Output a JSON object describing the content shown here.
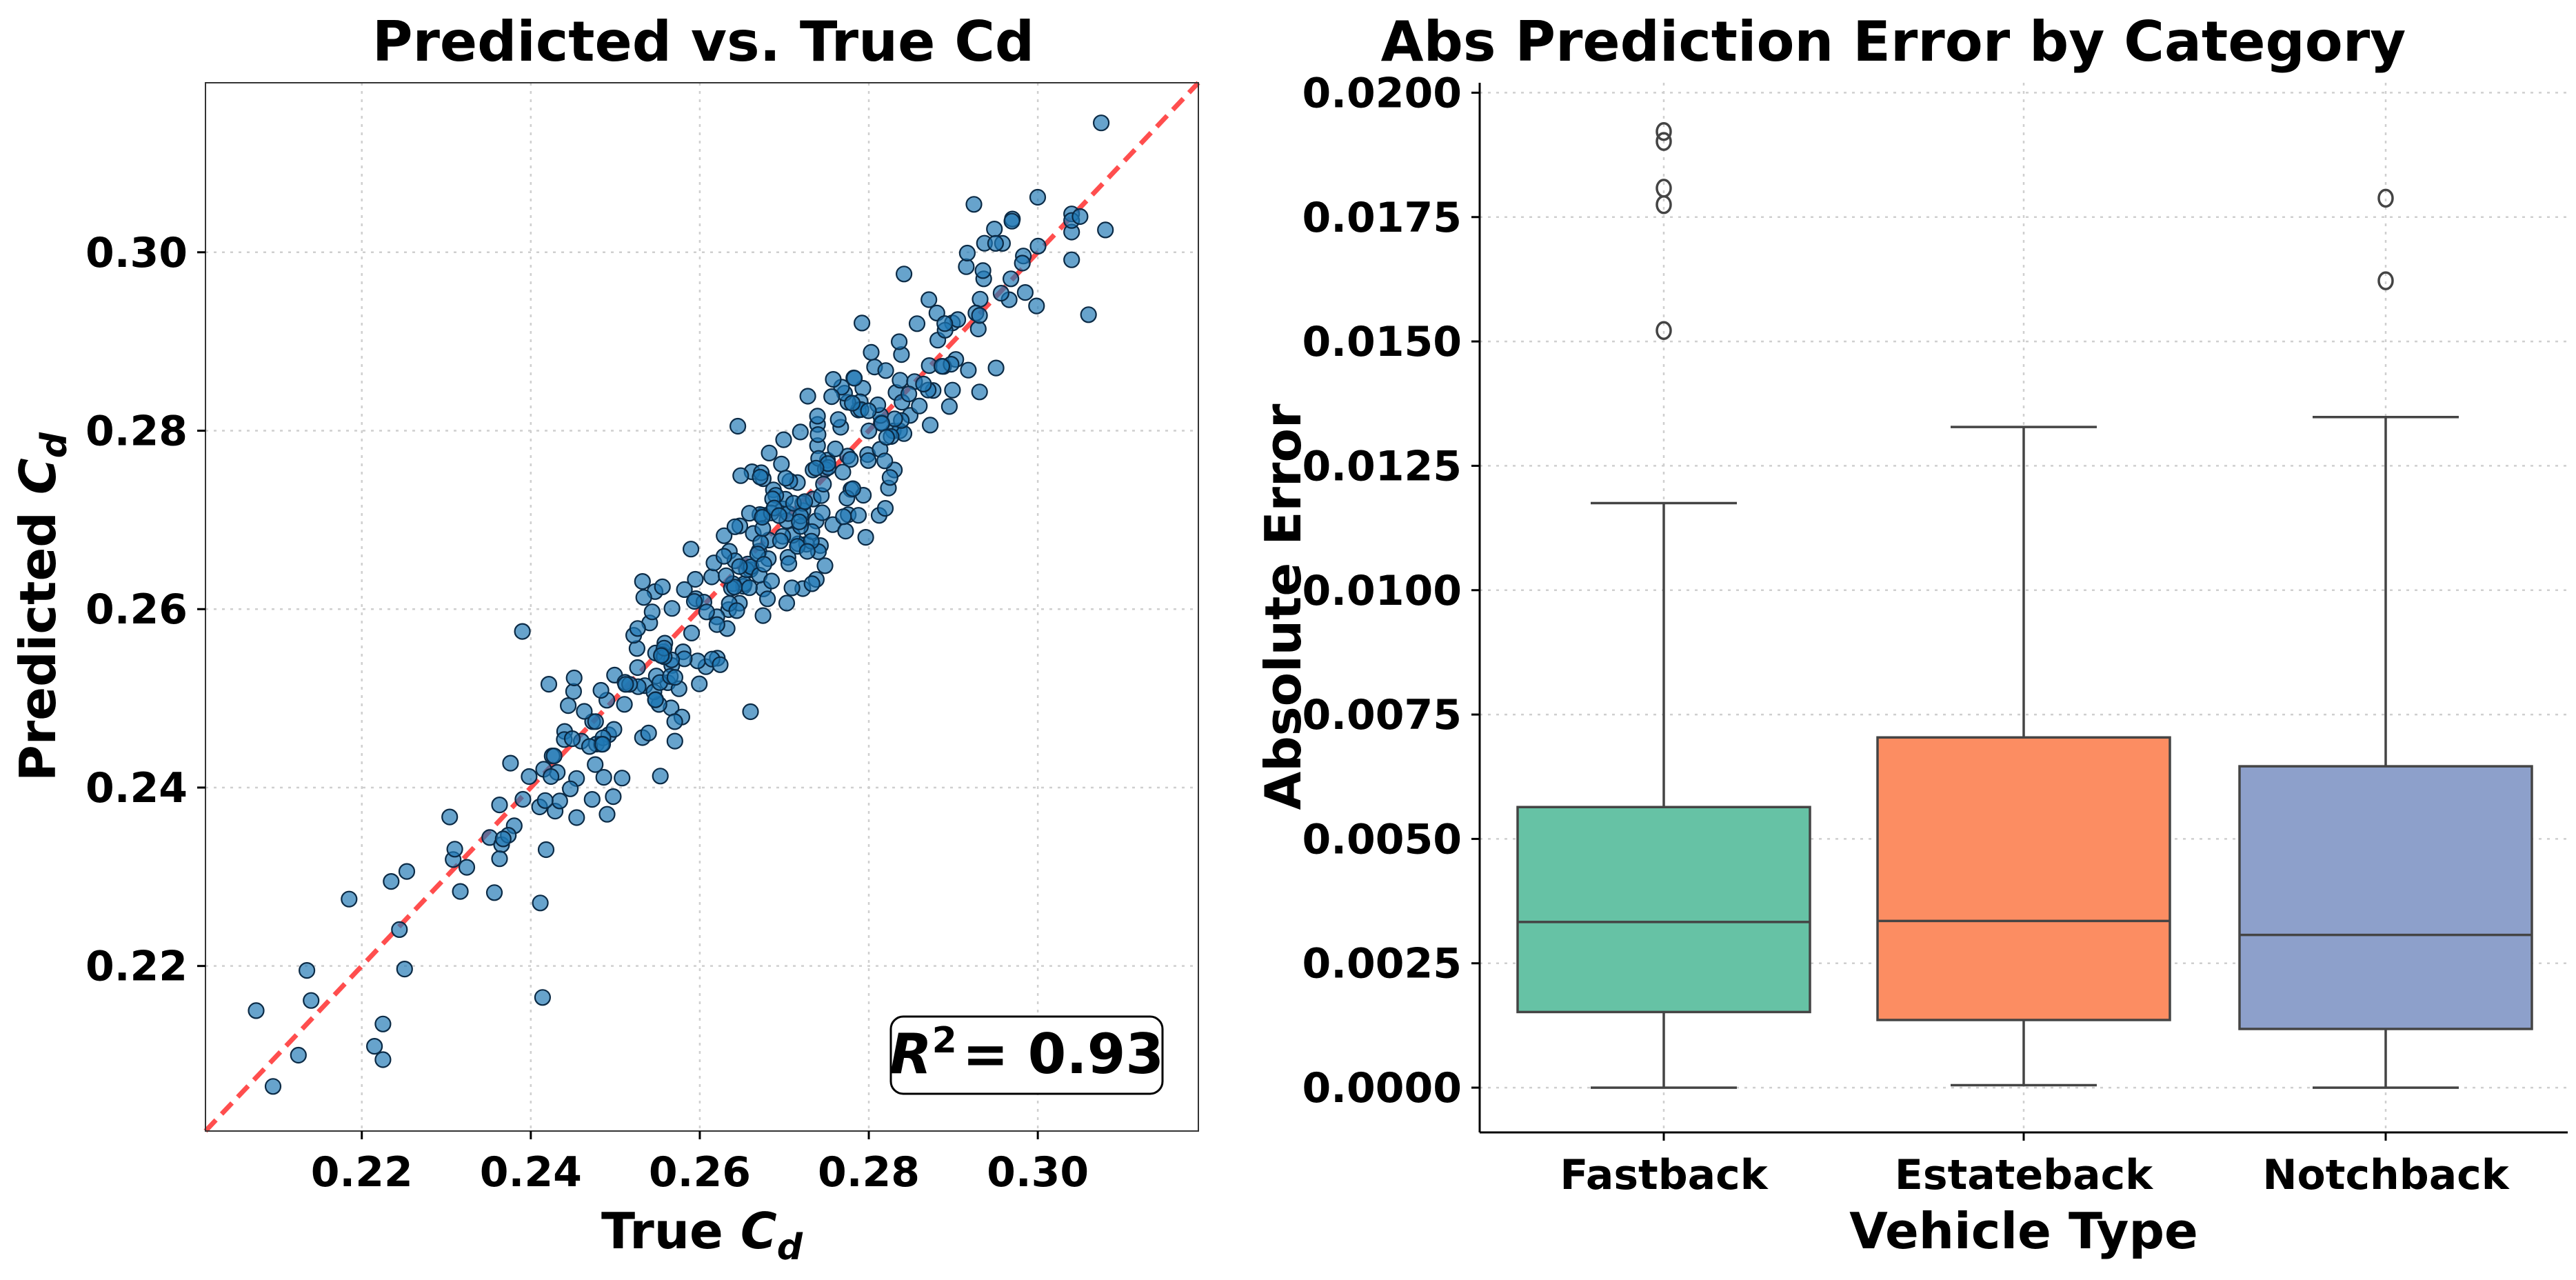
{
  "chart_data": [
    {
      "type": "scatter",
      "title": "Predicted vs. True Cd",
      "xlabel": "True",
      "ylabel": "Predicted",
      "symbol": "C",
      "subscript": "d",
      "xlim": [
        0.2015,
        0.319
      ],
      "ylim": [
        0.2015,
        0.319
      ],
      "xticks": [
        0.22,
        0.24,
        0.26,
        0.28,
        0.3
      ],
      "yticks": [
        0.22,
        0.24,
        0.26,
        0.28,
        0.3
      ],
      "tick_labels": [
        "0.22",
        "0.24",
        "0.26",
        "0.28",
        "0.30"
      ],
      "reference_line": "y = x",
      "annotation": {
        "r2_symbol": "R",
        "r2_exponent": "2",
        "r2_value": "= 0.93"
      },
      "n_points": 360,
      "seed": 12345,
      "sample_points": [
        [
          0.2075,
          0.215
        ],
        [
          0.2095,
          0.2065
        ],
        [
          0.2125,
          0.21
        ],
        [
          0.2135,
          0.2195
        ],
        [
          0.2185,
          0.2275
        ],
        [
          0.2215,
          0.211
        ],
        [
          0.2225,
          0.2095
        ],
        [
          0.2225,
          0.2135
        ],
        [
          0.239,
          0.2575
        ],
        [
          0.2645,
          0.2805
        ],
        [
          0.266,
          0.2485
        ],
        [
          0.295,
          0.301
        ],
        [
          0.305,
          0.304
        ],
        [
          0.306,
          0.293
        ],
        [
          0.3075,
          0.3145
        ],
        [
          0.308,
          0.3025
        ]
      ],
      "grid": true,
      "colors": {
        "points": "#1f77b4",
        "reference": "#ff3b3b"
      }
    },
    {
      "type": "box",
      "title": "Abs Prediction Error by Category",
      "xlabel": "Vehicle Type",
      "ylabel": "Absolute Error",
      "ylim": [
        -0.0009,
        0.0202
      ],
      "yticks": [
        0.0,
        0.0025,
        0.005,
        0.0075,
        0.01,
        0.0125,
        0.015,
        0.0175,
        0.02
      ],
      "ytick_labels": [
        "0.0000",
        "0.0025",
        "0.0050",
        "0.0075",
        "0.0100",
        "0.0125",
        "0.0150",
        "0.0175",
        "0.0200"
      ],
      "categories": [
        "Fastback",
        "Estateback",
        "Notchback"
      ],
      "boxes": [
        {
          "name": "Fastback",
          "whislo": 0.0,
          "q1": 0.00152,
          "med": 0.00333,
          "q3": 0.00564,
          "whishi": 0.01175,
          "fliers": [
            0.01522,
            0.01775,
            0.01808,
            0.01902,
            0.01922
          ],
          "color": "#66c2a5"
        },
        {
          "name": "Estateback",
          "whislo": 5e-05,
          "q1": 0.00136,
          "med": 0.00335,
          "q3": 0.00704,
          "whishi": 0.01328,
          "fliers": [],
          "color": "#fc8d62"
        },
        {
          "name": "Notchback",
          "whislo": 0.0,
          "q1": 0.00118,
          "med": 0.00307,
          "q3": 0.00646,
          "whishi": 0.01348,
          "fliers": [
            0.01622,
            0.01788
          ],
          "color": "#8da0cb"
        }
      ],
      "grid": true
    }
  ]
}
